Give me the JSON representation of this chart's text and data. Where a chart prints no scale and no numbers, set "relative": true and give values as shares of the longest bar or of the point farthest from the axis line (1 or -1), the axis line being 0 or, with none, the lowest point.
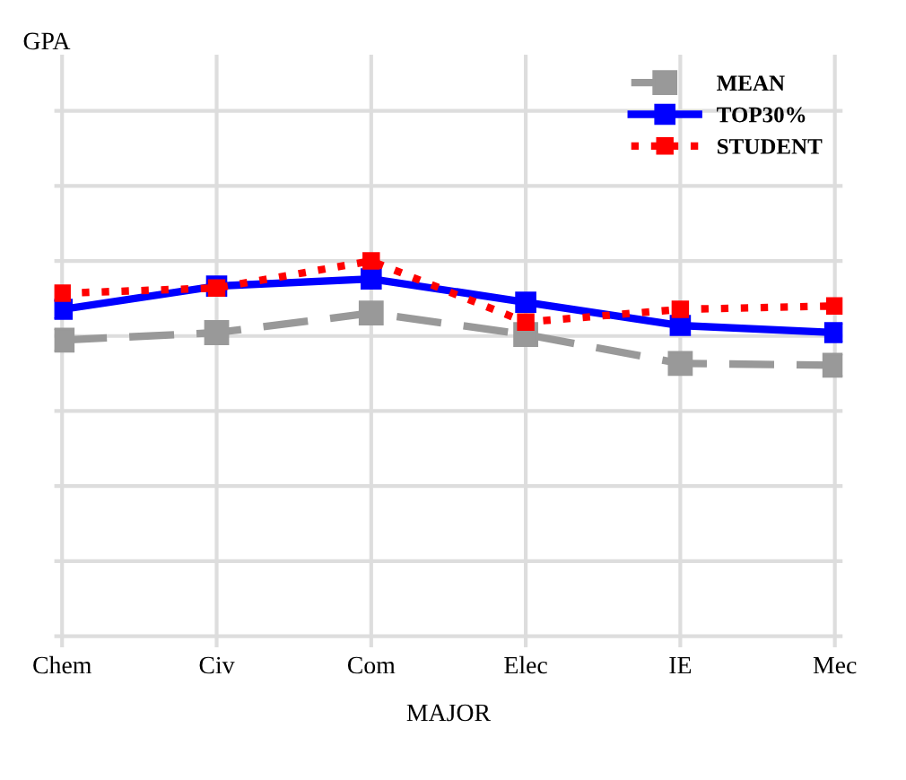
{
  "chart_data": {
    "type": "line",
    "relative": true,
    "annotations": [
      "GPA"
    ],
    "xlabel": "MAJOR",
    "categories": [
      "Chem",
      "Civ",
      "Com",
      "Elec",
      "IE",
      "Mec"
    ],
    "grid": true,
    "legend": "top right",
    "marker": "square",
    "series": [
      {
        "name": "MEAN",
        "color": "#999999",
        "line_style": "dashed",
        "values": [
          0.789,
          0.809,
          0.861,
          0.804,
          0.727,
          0.722
        ]
      },
      {
        "name": "TOP30%",
        "color": "#0000ff",
        "line_style": "solid",
        "values": [
          0.871,
          0.933,
          0.952,
          0.89,
          0.828,
          0.809
        ]
      },
      {
        "name": "STUDENT",
        "color": "#ff0000",
        "line_style": "dotted",
        "values": [
          0.914,
          0.928,
          1,
          0.837,
          0.871,
          0.88
        ]
      }
    ]
  }
}
